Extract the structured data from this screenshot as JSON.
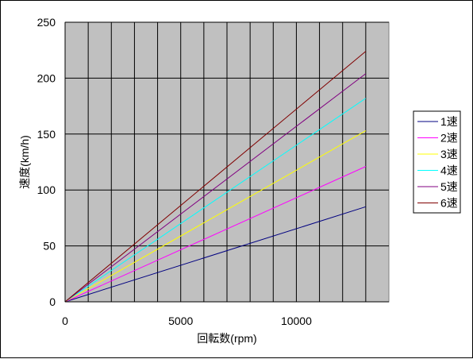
{
  "chart_data": {
    "type": "line",
    "title": "",
    "xlabel": "回転数(rpm)",
    "ylabel": "速度(km/h)",
    "xlim": [
      0,
      14000
    ],
    "ylim": [
      0,
      250
    ],
    "x_ticks": [
      0,
      5000,
      10000
    ],
    "y_ticks": [
      0,
      50,
      100,
      150,
      200,
      250
    ],
    "x_grid_step": 1000,
    "grid": true,
    "plot_background": "#c0c0c0",
    "legend_position": "right",
    "x": [
      0,
      13000
    ],
    "series": [
      {
        "name": "1速",
        "color": "#000080",
        "values": [
          0,
          85
        ]
      },
      {
        "name": "2速",
        "color": "#ff00ff",
        "values": [
          0,
          121
        ]
      },
      {
        "name": "3速",
        "color": "#ffff00",
        "values": [
          0,
          153
        ]
      },
      {
        "name": "4速",
        "color": "#00ffff",
        "values": [
          0,
          182
        ]
      },
      {
        "name": "5速",
        "color": "#800080",
        "values": [
          0,
          204
        ]
      },
      {
        "name": "6速",
        "color": "#800000",
        "values": [
          0,
          224
        ]
      }
    ]
  }
}
